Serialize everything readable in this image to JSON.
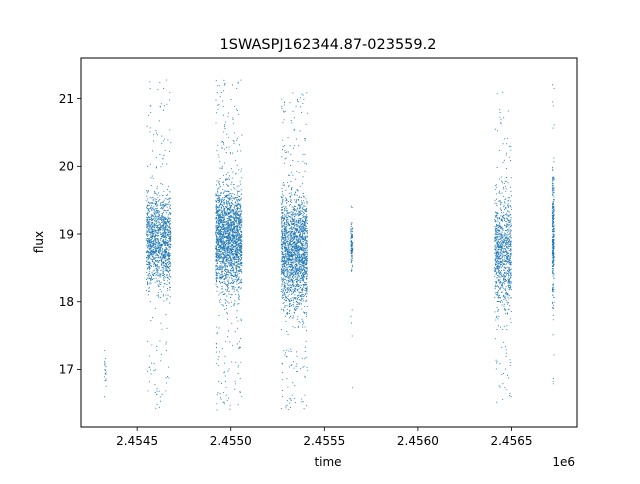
{
  "chart_data": {
    "type": "scatter",
    "title": "1SWASPJ162344.87-023559.2",
    "xlabel": "time",
    "ylabel": "flux",
    "x_offset_label": "1e6",
    "xlim": [
      2.4542,
      2.45685
    ],
    "ylim": [
      16.15,
      21.6
    ],
    "x_ticks": [
      2.4545,
      2.455,
      2.4555,
      2.456,
      2.4565
    ],
    "x_tick_labels": [
      "2.4545",
      "2.4550",
      "2.4555",
      "2.4560",
      "2.4565"
    ],
    "y_ticks": [
      17,
      18,
      19,
      20,
      21
    ],
    "y_tick_labels": [
      "17",
      "18",
      "19",
      "20",
      "21"
    ],
    "grid": false,
    "marker_color": "#1f77b4",
    "clusters": [
      {
        "x_range": [
          2.454325,
          2.454335
        ],
        "y_range": [
          16.5,
          17.6
        ],
        "core_range": [
          16.6,
          17.3
        ],
        "density": 20
      },
      {
        "x_range": [
          2.45455,
          2.45468
        ],
        "y_range": [
          16.4,
          21.3
        ],
        "core_range": [
          18.0,
          19.8
        ],
        "density": 1400
      },
      {
        "x_range": [
          2.45492,
          2.45506
        ],
        "y_range": [
          16.4,
          21.3
        ],
        "core_range": [
          17.9,
          20.0
        ],
        "density": 2200
      },
      {
        "x_range": [
          2.45527,
          2.45541
        ],
        "y_range": [
          16.4,
          21.1
        ],
        "core_range": [
          17.6,
          19.9
        ],
        "density": 2000
      },
      {
        "x_range": [
          2.455642,
          2.455652
        ],
        "y_range": [
          16.7,
          19.5
        ],
        "core_range": [
          18.4,
          19.3
        ],
        "density": 110
      },
      {
        "x_range": [
          2.45641,
          2.4565
        ],
        "y_range": [
          16.5,
          21.1
        ],
        "core_range": [
          17.6,
          19.9
        ],
        "density": 950
      },
      {
        "x_range": [
          2.456718,
          2.456728
        ],
        "y_range": [
          16.6,
          21.35
        ],
        "core_range": [
          17.7,
          20.2
        ],
        "density": 320
      }
    ]
  }
}
